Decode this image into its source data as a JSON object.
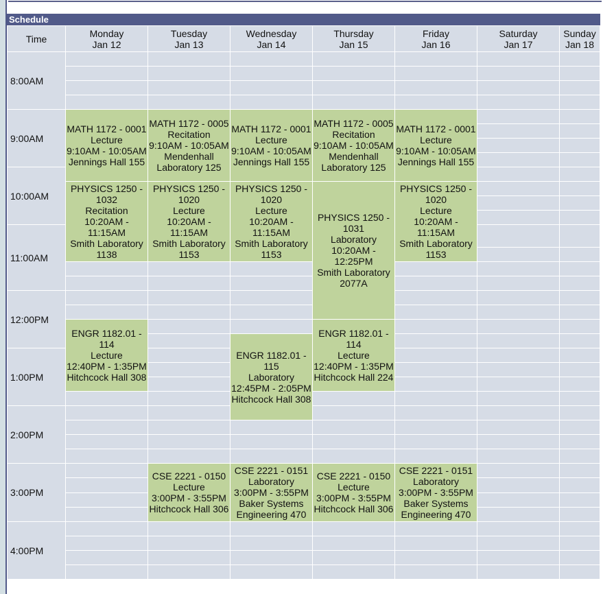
{
  "panel_title": "Schedule",
  "time_header": "Time",
  "days": [
    {
      "name": "Monday",
      "date": "Jan 12"
    },
    {
      "name": "Tuesday",
      "date": "Jan 13"
    },
    {
      "name": "Wednesday",
      "date": "Jan 14"
    },
    {
      "name": "Thursday",
      "date": "Jan 15"
    },
    {
      "name": "Friday",
      "date": "Jan 16"
    },
    {
      "name": "Saturday",
      "date": "Jan 17"
    },
    {
      "name": "Sunday",
      "date": "Jan 18"
    }
  ],
  "hours": [
    "8:00AM",
    "9:00AM",
    "10:00AM",
    "11:00AM",
    "12:00PM",
    "1:00PM",
    "2:00PM",
    "3:00PM",
    "4:00PM"
  ],
  "events": [
    {
      "day": 0,
      "course": "MATH 1172 - 0001",
      "type": "Lecture",
      "time": "9:10AM - 10:05AM",
      "location": "Jennings Hall 155"
    },
    {
      "day": 1,
      "course": "MATH 1172 - 0005",
      "type": "Recitation",
      "time": "9:10AM - 10:05AM",
      "location": "Mendenhall Laboratory 125"
    },
    {
      "day": 2,
      "course": "MATH 1172 - 0001",
      "type": "Lecture",
      "time": "9:10AM - 10:05AM",
      "location": "Jennings Hall 155"
    },
    {
      "day": 3,
      "course": "MATH 1172 - 0005",
      "type": "Recitation",
      "time": "9:10AM - 10:05AM",
      "location": "Mendenhall Laboratory 125"
    },
    {
      "day": 4,
      "course": "MATH 1172 - 0001",
      "type": "Lecture",
      "time": "9:10AM - 10:05AM",
      "location": "Jennings Hall 155"
    },
    {
      "day": 0,
      "course": "PHYSICS 1250 - 1032",
      "type": "Recitation",
      "time": "10:20AM - 11:15AM",
      "location": "Smith Laboratory 1138"
    },
    {
      "day": 1,
      "course": "PHYSICS 1250 - 1020",
      "type": "Lecture",
      "time": "10:20AM - 11:15AM",
      "location": "Smith Laboratory 1153"
    },
    {
      "day": 2,
      "course": "PHYSICS 1250 - 1020",
      "type": "Lecture",
      "time": "10:20AM - 11:15AM",
      "location": "Smith Laboratory 1153"
    },
    {
      "day": 3,
      "course": "PHYSICS 1250 - 1031",
      "type": "Laboratory",
      "time": "10:20AM - 12:25PM",
      "location": "Smith Laboratory 2077A"
    },
    {
      "day": 4,
      "course": "PHYSICS 1250 - 1020",
      "type": "Lecture",
      "time": "10:20AM - 11:15AM",
      "location": "Smith Laboratory 1153"
    },
    {
      "day": 0,
      "course": "ENGR 1182.01 - 114",
      "type": "Lecture",
      "time": "12:40PM - 1:35PM",
      "location": "Hitchcock Hall 308"
    },
    {
      "day": 2,
      "course": "ENGR 1182.01 - 115",
      "type": "Laboratory",
      "time": "12:45PM - 2:05PM",
      "location": "Hitchcock Hall 308"
    },
    {
      "day": 3,
      "course": "ENGR 1182.01 - 114",
      "type": "Lecture",
      "time": "12:40PM - 1:35PM",
      "location": "Hitchcock Hall 224"
    },
    {
      "day": 1,
      "course": "CSE 2221 - 0150",
      "type": "Lecture",
      "time": "3:00PM - 3:55PM",
      "location": "Hitchcock Hall 306"
    },
    {
      "day": 2,
      "course": "CSE 2221 - 0151",
      "type": "Laboratory",
      "time": "3:00PM - 3:55PM",
      "location": "Baker Systems Engineering 470"
    },
    {
      "day": 3,
      "course": "CSE 2221 - 0150",
      "type": "Lecture",
      "time": "3:00PM - 3:55PM",
      "location": "Hitchcock Hall 306"
    },
    {
      "day": 4,
      "course": "CSE 2221 - 0151",
      "type": "Laboratory",
      "time": "3:00PM - 3:55PM",
      "location": "Baker Systems Engineering 470"
    }
  ],
  "colors": {
    "header_bar": "#515a89",
    "cell": "#d6dce6",
    "event": "#bfd39c"
  }
}
